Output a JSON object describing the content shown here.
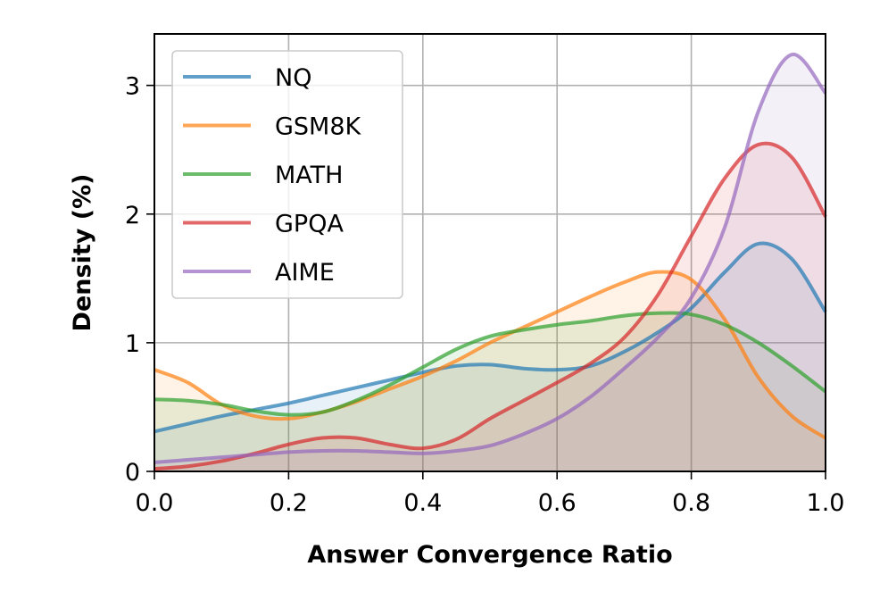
{
  "chart_data": {
    "type": "area",
    "title": "",
    "xlabel": "Answer Convergence Ratio",
    "ylabel": "Density (%)",
    "xlim": [
      0.0,
      1.0
    ],
    "ylim": [
      0.0,
      3.4
    ],
    "xticks": [
      "0.0",
      "0.2",
      "0.4",
      "0.6",
      "0.8",
      "1.0"
    ],
    "xtick_values": [
      0.0,
      0.2,
      0.4,
      0.6,
      0.8,
      1.0
    ],
    "yticks": [
      "0",
      "1",
      "2",
      "3"
    ],
    "ytick_values": [
      0,
      1,
      2,
      3
    ],
    "grid": true,
    "legend_position": "top-left",
    "x": [
      0.0,
      0.05,
      0.1,
      0.15,
      0.2,
      0.25,
      0.3,
      0.35,
      0.4,
      0.45,
      0.5,
      0.55,
      0.6,
      0.65,
      0.7,
      0.75,
      0.8,
      0.85,
      0.9,
      0.95,
      1.0
    ],
    "series": [
      {
        "name": "NQ",
        "color": "#1f77b4",
        "values": [
          0.31,
          0.37,
          0.43,
          0.48,
          0.53,
          0.59,
          0.65,
          0.71,
          0.77,
          0.82,
          0.83,
          0.8,
          0.79,
          0.82,
          0.93,
          1.08,
          1.27,
          1.55,
          1.77,
          1.65,
          1.24
        ]
      },
      {
        "name": "GSM8K",
        "color": "#ff7f0e",
        "values": [
          0.79,
          0.69,
          0.52,
          0.43,
          0.41,
          0.46,
          0.54,
          0.64,
          0.74,
          0.86,
          1.0,
          1.12,
          1.24,
          1.36,
          1.47,
          1.55,
          1.49,
          1.18,
          0.73,
          0.43,
          0.26
        ]
      },
      {
        "name": "MATH",
        "color": "#2ca02c",
        "values": [
          0.56,
          0.55,
          0.52,
          0.47,
          0.44,
          0.46,
          0.55,
          0.67,
          0.81,
          0.95,
          1.05,
          1.1,
          1.14,
          1.17,
          1.21,
          1.23,
          1.22,
          1.14,
          1.0,
          0.82,
          0.62
        ]
      },
      {
        "name": "GPQA",
        "color": "#d62728",
        "values": [
          0.02,
          0.04,
          0.08,
          0.14,
          0.21,
          0.26,
          0.26,
          0.21,
          0.18,
          0.25,
          0.41,
          0.55,
          0.69,
          0.84,
          1.04,
          1.37,
          1.83,
          2.28,
          2.54,
          2.44,
          1.98
        ]
      },
      {
        "name": "AIME",
        "color": "#9467bd",
        "values": [
          0.07,
          0.09,
          0.11,
          0.13,
          0.15,
          0.16,
          0.16,
          0.15,
          0.14,
          0.16,
          0.2,
          0.29,
          0.41,
          0.58,
          0.8,
          1.04,
          1.35,
          1.9,
          2.8,
          3.24,
          2.94
        ]
      }
    ]
  }
}
